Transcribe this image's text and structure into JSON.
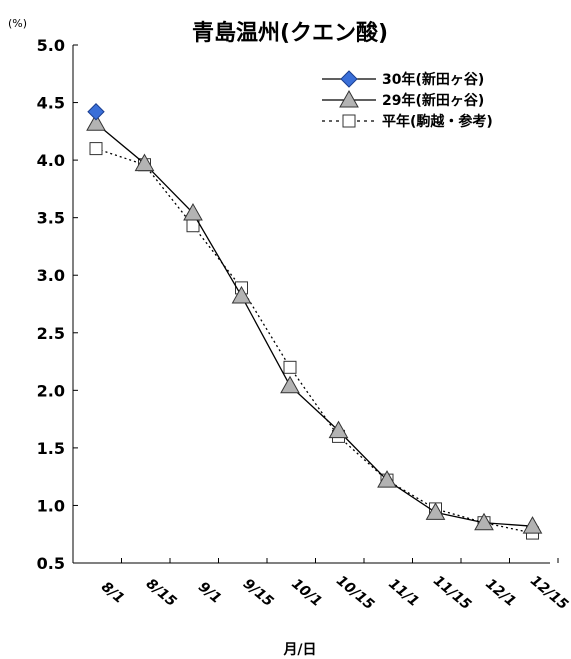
{
  "chart_data": {
    "type": "line",
    "title": "青島温州(クエン酸)",
    "ylabel": "(%)",
    "xlabel": "月/日",
    "ylim": [
      0.5,
      5.0
    ],
    "yticks": [
      "5.0",
      "4.5",
      "4.0",
      "3.5",
      "3.0",
      "2.5",
      "2.0",
      "1.5",
      "1.0",
      "0.5"
    ],
    "categories": [
      "8/1",
      "8/15",
      "9/1",
      "9/15",
      "10/1",
      "10/15",
      "11/1",
      "11/15",
      "12/1",
      "12/15"
    ],
    "legend_position": "top-right",
    "series": [
      {
        "name": "30年(新田ヶ谷)",
        "marker": "diamond",
        "color": "#3a6fd8",
        "line": "solid",
        "x": [
          0
        ],
        "values": [
          4.42
        ]
      },
      {
        "name": "29年(新田ヶ谷)",
        "marker": "triangle",
        "color": "#b3b3b3",
        "line": "solid",
        "x": [
          0,
          1,
          2,
          3,
          4,
          5,
          6,
          7,
          8,
          9
        ],
        "values": [
          4.32,
          3.97,
          3.54,
          2.82,
          2.04,
          1.65,
          1.22,
          0.94,
          0.85,
          0.82
        ]
      },
      {
        "name": "平年(駒越・参考)",
        "marker": "square",
        "color": "#ffffff",
        "line": "dotted",
        "x": [
          0,
          1,
          2,
          3,
          4,
          5,
          6,
          7,
          8,
          9
        ],
        "values": [
          4.1,
          3.96,
          3.43,
          2.89,
          2.2,
          1.6,
          1.22,
          0.97,
          0.85,
          0.76
        ]
      }
    ]
  }
}
